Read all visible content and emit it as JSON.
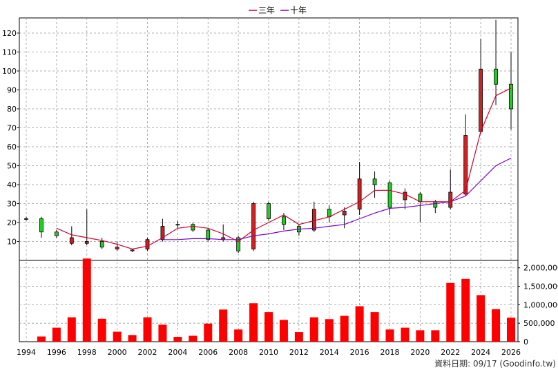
{
  "legend": [
    {
      "label": "三年",
      "color": "#cc0033"
    },
    {
      "label": "十年",
      "color": "#7a00cc"
    }
  ],
  "source_note": "資料日期: 09/17  (Goodinfo.tw)",
  "colors": {
    "up": "#22cc22",
    "down": "#cc2222",
    "volume": "#ff0000",
    "grid": "#999999"
  },
  "chart_data": {
    "type": "candlestick",
    "years": [
      1994,
      1995,
      1996,
      1997,
      1998,
      1999,
      2000,
      2001,
      2002,
      2003,
      2004,
      2005,
      2006,
      2007,
      2008,
      2009,
      2010,
      2011,
      2012,
      2013,
      2014,
      2015,
      2016,
      2017,
      2018,
      2019,
      2020,
      2021,
      2022,
      2023,
      2024,
      2025,
      2026
    ],
    "x_tick_labels": [
      "1994",
      "1996",
      "1998",
      "2000",
      "2002",
      "2004",
      "2006",
      "2008",
      "2010",
      "2012",
      "2014",
      "2016",
      "2018",
      "2020",
      "2022",
      "2024",
      "2026"
    ],
    "price_axis": {
      "ticks": [
        10,
        20,
        30,
        40,
        50,
        60,
        70,
        80,
        90,
        100,
        110,
        120
      ],
      "range": [
        0,
        128
      ]
    },
    "volume_axis": {
      "ticks": [
        0,
        500000,
        1000000,
        1500000,
        2000000
      ],
      "tick_labels": [
        "0",
        "500,000",
        "1,000,000",
        "1,500,000",
        "2,000,000"
      ],
      "range": [
        0,
        2200000
      ]
    },
    "candles": [
      {
        "year": 1994,
        "open": 22,
        "close": 22,
        "high": 23,
        "low": 21
      },
      {
        "year": 1995,
        "open": 15,
        "close": 22,
        "high": 23,
        "low": 12
      },
      {
        "year": 1996,
        "open": 13,
        "close": 15,
        "high": 16,
        "low": 12
      },
      {
        "year": 1997,
        "open": 12,
        "close": 9,
        "high": 18,
        "low": 8
      },
      {
        "year": 1998,
        "open": 10,
        "close": 9,
        "high": 27,
        "low": 8
      },
      {
        "year": 1999,
        "open": 7,
        "close": 10,
        "high": 12,
        "low": 6
      },
      {
        "year": 2000,
        "open": 7,
        "close": 6,
        "high": 10,
        "low": 5
      },
      {
        "year": 2001,
        "open": 5.5,
        "close": 5,
        "high": 6,
        "low": 4.5
      },
      {
        "year": 2002,
        "open": 11,
        "close": 6,
        "high": 12,
        "low": 5
      },
      {
        "year": 2003,
        "open": 18,
        "close": 11,
        "high": 22,
        "low": 10
      },
      {
        "year": 2004,
        "open": 19,
        "close": 19,
        "high": 21,
        "low": 17
      },
      {
        "year": 2005,
        "open": 16,
        "close": 19,
        "high": 20,
        "low": 15
      },
      {
        "year": 2006,
        "open": 11,
        "close": 16,
        "high": 17,
        "low": 10
      },
      {
        "year": 2007,
        "open": 12,
        "close": 11,
        "high": 19,
        "low": 10
      },
      {
        "year": 2008,
        "open": 5,
        "close": 12,
        "high": 13,
        "low": 4
      },
      {
        "year": 2009,
        "open": 30,
        "close": 6,
        "high": 31,
        "low": 5
      },
      {
        "year": 2010,
        "open": 22,
        "close": 30,
        "high": 31,
        "low": 21
      },
      {
        "year": 2011,
        "open": 19,
        "close": 23,
        "high": 25,
        "low": 16
      },
      {
        "year": 2012,
        "open": 15,
        "close": 18,
        "high": 19,
        "low": 13
      },
      {
        "year": 2013,
        "open": 27,
        "close": 16,
        "high": 31,
        "low": 15
      },
      {
        "year": 2014,
        "open": 23,
        "close": 27,
        "high": 29,
        "low": 20
      },
      {
        "year": 2015,
        "open": 26,
        "close": 24,
        "high": 28,
        "low": 17
      },
      {
        "year": 2016,
        "open": 43,
        "close": 27,
        "high": 52,
        "low": 24
      },
      {
        "year": 2017,
        "open": 40,
        "close": 43,
        "high": 47,
        "low": 33
      },
      {
        "year": 2018,
        "open": 28,
        "close": 41,
        "high": 42,
        "low": 24
      },
      {
        "year": 2019,
        "open": 36,
        "close": 32,
        "high": 38,
        "low": 27
      },
      {
        "year": 2020,
        "open": 31,
        "close": 35,
        "high": 36,
        "low": 20
      },
      {
        "year": 2021,
        "open": 28,
        "close": 31,
        "high": 32,
        "low": 25
      },
      {
        "year": 2022,
        "open": 36,
        "close": 28,
        "high": 48,
        "low": 27
      },
      {
        "year": 2023,
        "open": 66,
        "close": 35,
        "high": 77,
        "low": 34
      },
      {
        "year": 2024,
        "open": 101,
        "close": 68,
        "high": 117,
        "low": 67
      },
      {
        "year": 2025,
        "open": 93,
        "close": 101,
        "high": 127,
        "low": 82
      },
      {
        "year": 2026,
        "open": 80,
        "close": 93,
        "high": 110,
        "low": 69
      }
    ],
    "ma_3yr": [
      {
        "year": 1996,
        "value": 17
      },
      {
        "year": 1997,
        "value": 13.5
      },
      {
        "year": 1998,
        "value": 12
      },
      {
        "year": 1999,
        "value": 10.5
      },
      {
        "year": 2000,
        "value": 8.5
      },
      {
        "year": 2001,
        "value": 6
      },
      {
        "year": 2002,
        "value": 7.5
      },
      {
        "year": 2003,
        "value": 12
      },
      {
        "year": 2004,
        "value": 17
      },
      {
        "year": 2005,
        "value": 18
      },
      {
        "year": 2006,
        "value": 17
      },
      {
        "year": 2007,
        "value": 14
      },
      {
        "year": 2008,
        "value": 10
      },
      {
        "year": 2009,
        "value": 16
      },
      {
        "year": 2010,
        "value": 20
      },
      {
        "year": 2011,
        "value": 24
      },
      {
        "year": 2012,
        "value": 19
      },
      {
        "year": 2013,
        "value": 21
      },
      {
        "year": 2014,
        "value": 23
      },
      {
        "year": 2015,
        "value": 27
      },
      {
        "year": 2016,
        "value": 31
      },
      {
        "year": 2017,
        "value": 37
      },
      {
        "year": 2018,
        "value": 37
      },
      {
        "year": 2019,
        "value": 35
      },
      {
        "year": 2020,
        "value": 31
      },
      {
        "year": 2021,
        "value": 31
      },
      {
        "year": 2022,
        "value": 31
      },
      {
        "year": 2023,
        "value": 37
      },
      {
        "year": 2024,
        "value": 68
      },
      {
        "year": 2025,
        "value": 87
      },
      {
        "year": 2026,
        "value": 91
      }
    ],
    "ma_10yr": [
      {
        "year": 2003,
        "value": 11
      },
      {
        "year": 2004,
        "value": 11
      },
      {
        "year": 2005,
        "value": 11.5
      },
      {
        "year": 2006,
        "value": 11.5
      },
      {
        "year": 2007,
        "value": 11
      },
      {
        "year": 2008,
        "value": 11
      },
      {
        "year": 2009,
        "value": 13
      },
      {
        "year": 2010,
        "value": 14
      },
      {
        "year": 2011,
        "value": 15.5
      },
      {
        "year": 2012,
        "value": 16.5
      },
      {
        "year": 2013,
        "value": 17
      },
      {
        "year": 2014,
        "value": 18
      },
      {
        "year": 2015,
        "value": 19
      },
      {
        "year": 2016,
        "value": 22
      },
      {
        "year": 2017,
        "value": 25
      },
      {
        "year": 2018,
        "value": 27.5
      },
      {
        "year": 2019,
        "value": 28
      },
      {
        "year": 2020,
        "value": 29
      },
      {
        "year": 2021,
        "value": 30
      },
      {
        "year": 2022,
        "value": 31
      },
      {
        "year": 2023,
        "value": 34
      },
      {
        "year": 2024,
        "value": 42
      },
      {
        "year": 2025,
        "value": 50
      },
      {
        "year": 2026,
        "value": 54
      }
    ],
    "volume": [
      {
        "year": 1994,
        "value": 0
      },
      {
        "year": 1995,
        "value": 140000
      },
      {
        "year": 1996,
        "value": 380000
      },
      {
        "year": 1997,
        "value": 660000
      },
      {
        "year": 1998,
        "value": 2250000
      },
      {
        "year": 1999,
        "value": 620000
      },
      {
        "year": 2000,
        "value": 270000
      },
      {
        "year": 2001,
        "value": 180000
      },
      {
        "year": 2002,
        "value": 660000
      },
      {
        "year": 2003,
        "value": 460000
      },
      {
        "year": 2004,
        "value": 130000
      },
      {
        "year": 2005,
        "value": 160000
      },
      {
        "year": 2006,
        "value": 490000
      },
      {
        "year": 2007,
        "value": 870000
      },
      {
        "year": 2008,
        "value": 330000
      },
      {
        "year": 2009,
        "value": 1040000
      },
      {
        "year": 2010,
        "value": 800000
      },
      {
        "year": 2011,
        "value": 590000
      },
      {
        "year": 2012,
        "value": 260000
      },
      {
        "year": 2013,
        "value": 660000
      },
      {
        "year": 2014,
        "value": 610000
      },
      {
        "year": 2015,
        "value": 700000
      },
      {
        "year": 2016,
        "value": 960000
      },
      {
        "year": 2017,
        "value": 800000
      },
      {
        "year": 2018,
        "value": 330000
      },
      {
        "year": 2019,
        "value": 380000
      },
      {
        "year": 2020,
        "value": 310000
      },
      {
        "year": 2021,
        "value": 310000
      },
      {
        "year": 2022,
        "value": 1590000
      },
      {
        "year": 2023,
        "value": 1700000
      },
      {
        "year": 2024,
        "value": 1260000
      },
      {
        "year": 2025,
        "value": 880000
      },
      {
        "year": 2026,
        "value": 650000
      }
    ]
  }
}
